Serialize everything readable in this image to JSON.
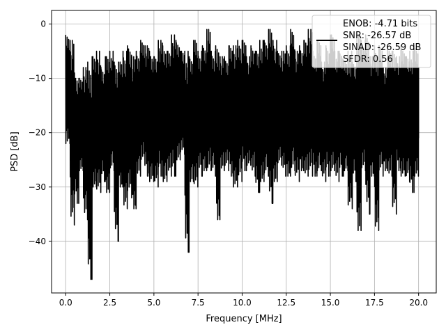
{
  "chart_data": {
    "type": "line",
    "title": "",
    "xlabel": "Frequency [MHz]",
    "ylabel": "PSD [dB]",
    "xlim": [
      -0.8,
      21.0
    ],
    "ylim": [
      -49.5,
      2.5
    ],
    "xticks": [
      0.0,
      2.5,
      5.0,
      7.5,
      10.0,
      12.5,
      15.0,
      17.5,
      20.0
    ],
    "xtick_labels": [
      "0.0",
      "2.5",
      "5.0",
      "7.5",
      "10.0",
      "12.5",
      "15.0",
      "17.5",
      "20.0"
    ],
    "yticks": [
      0,
      -10,
      -20,
      -30,
      -40
    ],
    "ytick_labels": [
      "0",
      "−10",
      "−20",
      "−30",
      "−40"
    ],
    "grid": true,
    "legend_position": "top-right",
    "legend_entries": [
      "ENOB: -4.71 bits",
      "SNR: -26.57 dB",
      "SINAD: -26.59 dB",
      "SFDR: 0.56"
    ],
    "series_color": "#000000",
    "series": [
      {
        "x": [
          0.0,
          0.25,
          0.5,
          0.75,
          1.0,
          1.25,
          1.5,
          1.75,
          2.0,
          2.25,
          2.5,
          2.75,
          3.0,
          3.25,
          3.5,
          3.75,
          4.0,
          4.25,
          4.5,
          4.75,
          5.0,
          5.25,
          5.5,
          5.75,
          6.0,
          6.25,
          6.5,
          6.75,
          7.0,
          7.25,
          7.5,
          7.75,
          8.0,
          8.25,
          8.5,
          8.75,
          9.0,
          9.25,
          9.5,
          9.75,
          10.0,
          10.25,
          10.5,
          10.75,
          11.0,
          11.25,
          11.5,
          11.75,
          12.0,
          12.25,
          12.5,
          12.75,
          13.0,
          13.25,
          13.5,
          13.75,
          14.0,
          14.25,
          14.5,
          14.75,
          15.0,
          15.25,
          15.5,
          15.75,
          16.0,
          16.25,
          16.5,
          16.75,
          17.0,
          17.25,
          17.5,
          17.75,
          18.0,
          18.25,
          18.5,
          18.75,
          19.0,
          19.25,
          19.5,
          19.75,
          20.0
        ],
        "y_max": [
          -2,
          -3,
          -9,
          -10,
          -8,
          -7,
          -6,
          -5,
          -8,
          -6,
          -5,
          -7,
          -7,
          -5,
          -4,
          -6,
          -5,
          -3,
          -4,
          -5,
          -6,
          -3,
          -4,
          -5,
          -2,
          -3,
          -5,
          -5,
          -6,
          -3,
          -5,
          -4,
          -1,
          -5,
          -4,
          -6,
          -6,
          -4,
          -4,
          -3,
          -3,
          -6,
          -4,
          -5,
          -3,
          -3,
          -1,
          -3,
          -5,
          -5,
          -4,
          -1,
          -5,
          -4,
          -3,
          -1,
          -5,
          -3,
          -7,
          -4,
          -2,
          -5,
          -5,
          -7,
          -5,
          -7,
          -2,
          -3,
          -2,
          -6,
          -4,
          -4,
          -8,
          -4,
          -5,
          -6,
          -4,
          -6,
          -5,
          -4,
          -8
        ],
        "y_min": [
          -22,
          -37,
          -33,
          -27,
          -36,
          -47,
          -30,
          -31,
          -29,
          -31,
          -27,
          -40,
          -30,
          -34,
          -32,
          -34,
          -28,
          -26,
          -28,
          -29,
          -30,
          -28,
          -29,
          -28,
          -28,
          -25,
          -24,
          -42,
          -29,
          -30,
          -28,
          -27,
          -27,
          -28,
          -36,
          -27,
          -27,
          -28,
          -30,
          -29,
          -27,
          -26,
          -28,
          -31,
          -29,
          -28,
          -33,
          -29,
          -26,
          -28,
          -28,
          -27,
          -29,
          -27,
          -28,
          -28,
          -28,
          -27,
          -29,
          -28,
          -27,
          -29,
          -28,
          -27,
          -34,
          -29,
          -38,
          -27,
          -35,
          -28,
          -38,
          -28,
          -27,
          -28,
          -35,
          -27,
          -28,
          -29,
          -31,
          -28,
          -21
        ]
      }
    ]
  }
}
